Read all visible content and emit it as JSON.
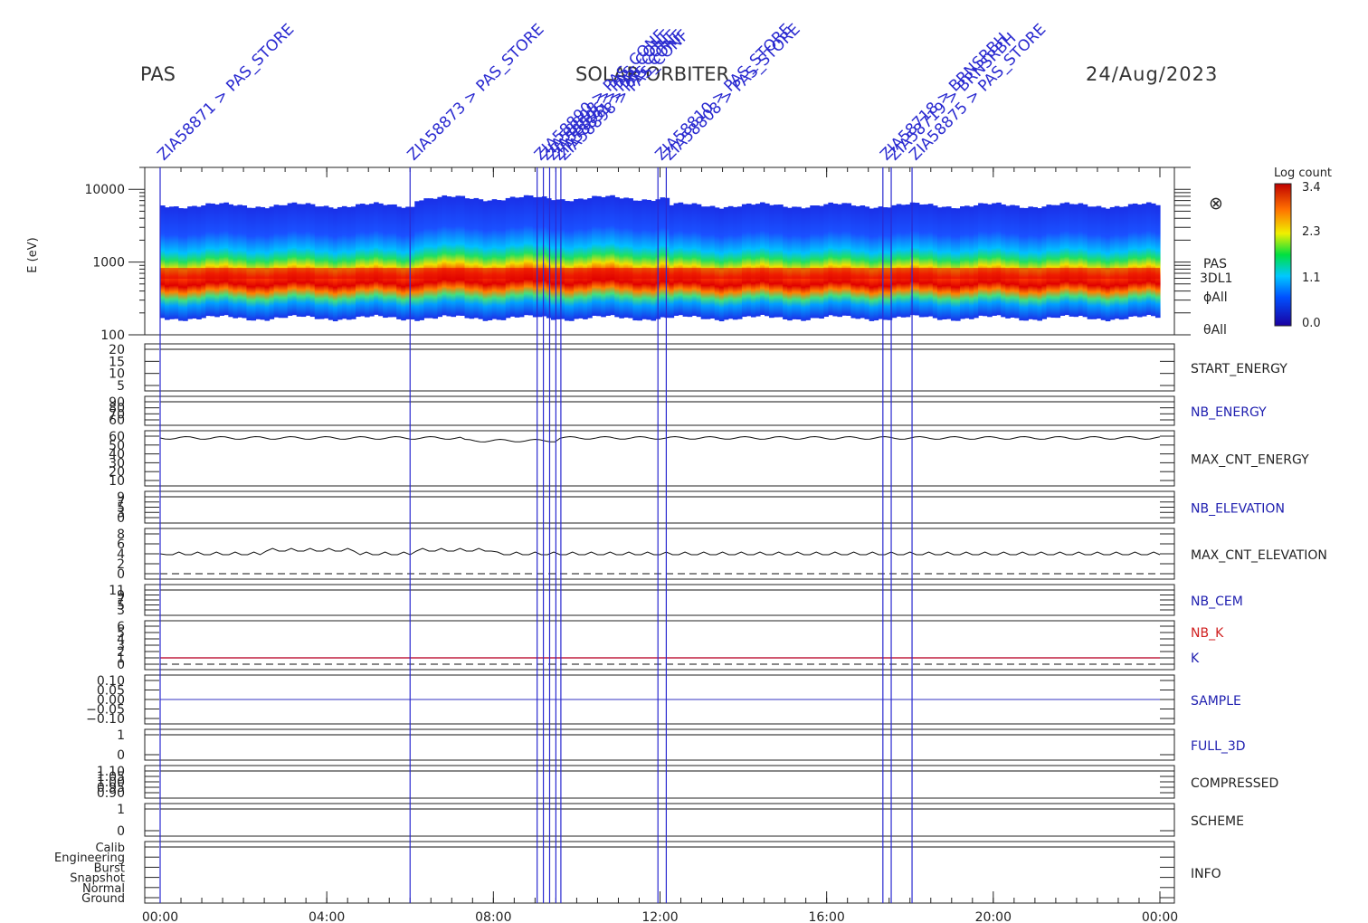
{
  "header": {
    "instrument": "PAS",
    "mission": "SOLAR ORBITER",
    "date": "24/Aug/2023"
  },
  "colorbar": {
    "title": "Log count",
    "ticks": [
      "3.4",
      "2.3",
      "1.1",
      "0.0"
    ]
  },
  "spectrogram_labels": [
    "PAS",
    "3DL1",
    "ϕAll",
    "θAll"
  ],
  "symbol": "⊗",
  "chart_data": {
    "type": "heatmap",
    "x_axis": {
      "tick_labels": [
        "00:00",
        "04:00",
        "08:00",
        "12:00",
        "16:00",
        "20:00",
        "00:00"
      ],
      "range_hours": [
        0,
        24
      ]
    },
    "spectrogram": {
      "ylabel": "E (eV)",
      "scale": "log",
      "ylim": [
        100,
        20000
      ],
      "tick_labels": [
        "10000",
        "1000",
        "100"
      ],
      "peak_energy_ev": 700,
      "colorbar_range": [
        0.0,
        3.4
      ]
    },
    "panels": [
      {
        "name": "START_ENERGY",
        "label_color": "#222222",
        "ticks": [
          "20",
          "15",
          "10",
          "5"
        ]
      },
      {
        "name": "NB_ENERGY",
        "label_color": "#2020b0",
        "ticks": [
          "90",
          "80",
          "70",
          "60"
        ]
      },
      {
        "name": "MAX_CNT_ENERGY",
        "label_color": "#222222",
        "ticks": [
          "60",
          "50",
          "40",
          "30",
          "20",
          "10"
        ],
        "typical_value": 58
      },
      {
        "name": "NB_ELEVATION",
        "label_color": "#2020b0",
        "ticks": [
          "9",
          "7",
          "5",
          "3",
          "0"
        ]
      },
      {
        "name": "MAX_CNT_ELEVATION",
        "label_color": "#222222",
        "ticks": [
          "8",
          "6",
          "4",
          "2",
          "0"
        ],
        "typical_value": 4
      },
      {
        "name": "NB_CEM",
        "label_color": "#2020b0",
        "ticks": [
          "11",
          "9",
          "7",
          "5",
          "3"
        ]
      },
      {
        "name": "NB_K",
        "label_color": "#d02020",
        "second_name": "K",
        "second_color": "#2020b0",
        "ticks": [
          "6",
          "5",
          "4",
          "3",
          "2",
          "1",
          "0"
        ],
        "typical_value": 1
      },
      {
        "name": "SAMPLE",
        "label_color": "#2020b0",
        "ticks": [
          "0.10",
          "0.05",
          "0.00",
          "−0.05",
          "−0.10"
        ]
      },
      {
        "name": "FULL_3D",
        "label_color": "#2020b0",
        "ticks": [
          "1",
          "0"
        ]
      },
      {
        "name": "COMPRESSED",
        "label_color": "#222222",
        "ticks": [
          "1.10",
          "1.05",
          "1.00",
          "0.95",
          "0.90"
        ]
      },
      {
        "name": "SCHEME",
        "label_color": "#222222",
        "ticks": [
          "1",
          "0"
        ]
      },
      {
        "name": "INFO",
        "label_color": "#222222",
        "ticks": [
          "Calib",
          "Engineering",
          "Burst",
          "Snapshot",
          "Normal",
          "Ground"
        ]
      }
    ],
    "events": [
      {
        "time_hours": 0.0,
        "label": "ZIA58871 > PAS_STORE"
      },
      {
        "time_hours": 6.0,
        "label": "ZIA58873 > PAS_STORE"
      },
      {
        "time_hours": 9.05,
        "label": "ZIA58890 > PAS_CONF"
      },
      {
        "time_hours": 9.2,
        "label": "ZIA58898 > PAS_CONF"
      },
      {
        "time_hours": 9.35,
        "label": "ZIA58896 > PAS_CONF"
      },
      {
        "time_hours": 9.5,
        "label": "ZIA58891 > PAS_CONF"
      },
      {
        "time_hours": 9.62,
        "label": "ZIA58898 > PAS_CONF"
      },
      {
        "time_hours": 11.95,
        "label": "ZIA58810 > PAS_STORE"
      },
      {
        "time_hours": 12.15,
        "label": "ZIA58808 > PAS_STORE"
      },
      {
        "time_hours": 17.35,
        "label": "ZIA58718 > BRNSRBH"
      },
      {
        "time_hours": 17.55,
        "label": "ZIA58719 > BRNSRBH"
      },
      {
        "time_hours": 18.05,
        "label": "ZIA58875 > PAS_STORE"
      }
    ],
    "colors": {
      "event_line": "#2a2ad0",
      "red_trace": "#c02040"
    }
  }
}
